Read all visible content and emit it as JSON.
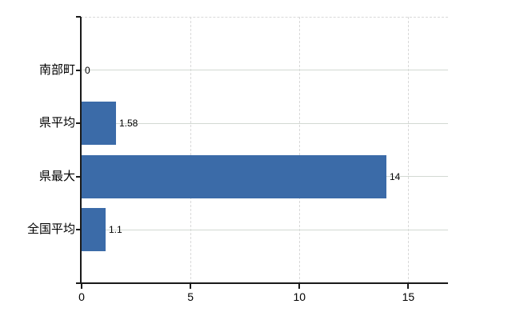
{
  "chart_data": {
    "type": "bar",
    "orientation": "horizontal",
    "categories": [
      "南部町",
      "県平均",
      "県最大",
      "全国平均"
    ],
    "values": [
      0,
      1.58,
      14,
      1.1
    ],
    "value_labels": [
      "0",
      "1.58",
      "14",
      "1.1"
    ],
    "x_tick_labels": [
      "0",
      "5",
      "10",
      "15"
    ],
    "x_tick_values": [
      0,
      5,
      10,
      15
    ],
    "xlim": [
      0,
      16.85
    ],
    "grid": "on",
    "legend": "none",
    "colors": {
      "bar": "#3b6ba8",
      "axis": "#1a1a1a",
      "h_grid": "#d2d9d2",
      "v_grid": "#d9d9d9",
      "text": "#000000",
      "background": "#ffffff"
    }
  }
}
